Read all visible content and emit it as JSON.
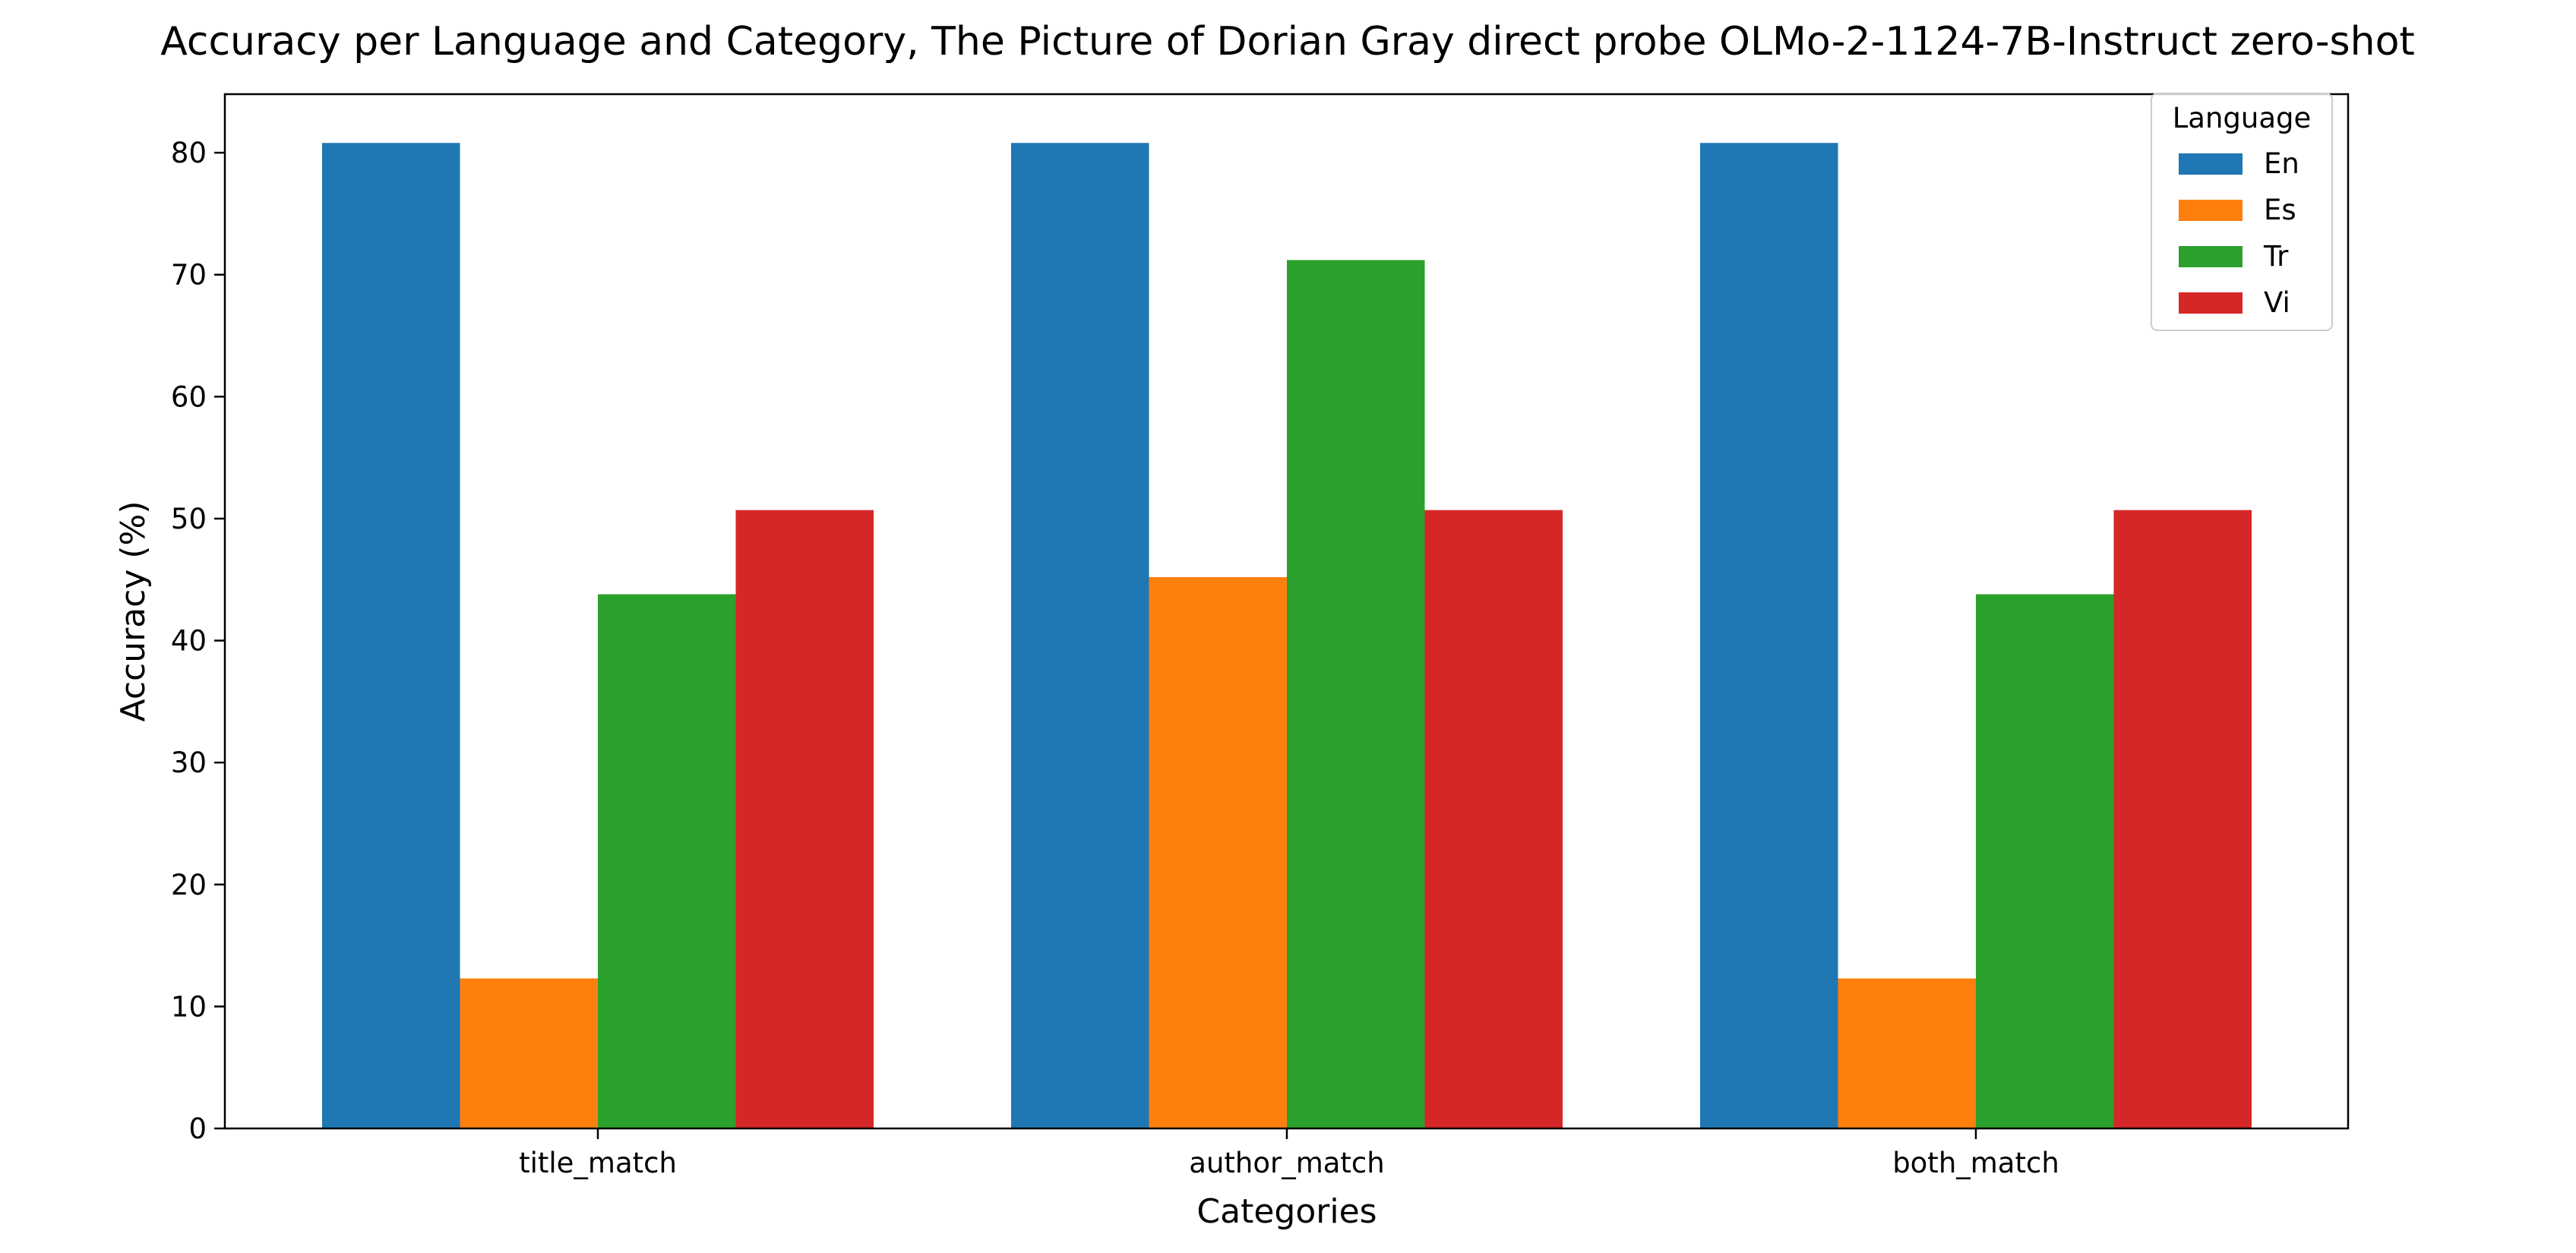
{
  "chart_data": {
    "type": "bar",
    "title": "Accuracy per Language and Category, The Picture of Dorian Gray direct probe OLMo-2-1124-7B-Instruct zero-shot",
    "xlabel": "Categories",
    "ylabel": "Accuracy (%)",
    "categories": [
      "title_match",
      "author_match",
      "both_match"
    ],
    "series": [
      {
        "name": "En",
        "color": "#1f77b4",
        "values": [
          80.8,
          80.8,
          80.8
        ]
      },
      {
        "name": "Es",
        "color": "#ff7f0e",
        "values": [
          12.3,
          45.2,
          12.3
        ]
      },
      {
        "name": "Tr",
        "color": "#2ca02c",
        "values": [
          43.8,
          71.2,
          43.8
        ]
      },
      {
        "name": "Vi",
        "color": "#d62728",
        "values": [
          50.7,
          50.7,
          50.7
        ]
      }
    ],
    "ylim": [
      0,
      84.8
    ],
    "yticks": [
      0,
      10,
      20,
      30,
      40,
      50,
      60,
      70,
      80
    ],
    "legend": {
      "title": "Language",
      "placement": "top-right"
    },
    "grid": false
  }
}
